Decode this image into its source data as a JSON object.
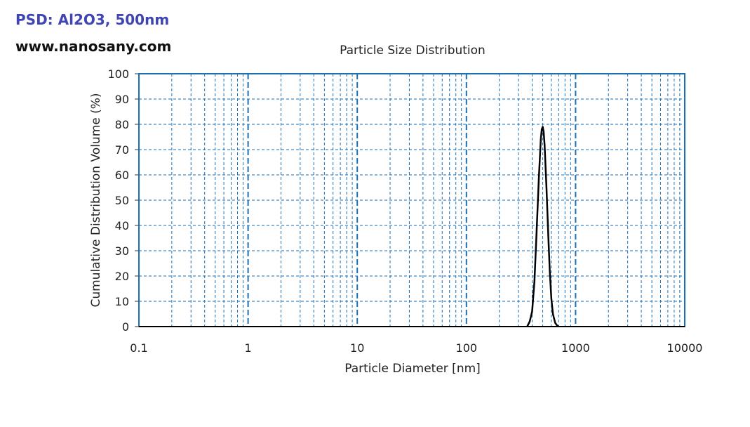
{
  "header": {
    "title": "PSD: Al2O3, 500nm",
    "site": "www.nanosany.com"
  },
  "chart_data": {
    "type": "line",
    "title": "Particle Size Distribution",
    "xlabel": "Particle Diameter [nm]",
    "ylabel": "Cumulative Distribution Volume (%)",
    "x_scale": "log",
    "xlim": [
      0.1,
      10000
    ],
    "ylim": [
      0,
      100
    ],
    "x_ticks": [
      0.1,
      1,
      10,
      100,
      1000,
      10000
    ],
    "x_tick_labels": [
      "0.1",
      "1",
      "10",
      "100",
      "1000",
      "10000"
    ],
    "y_ticks": [
      0,
      10,
      20,
      30,
      40,
      50,
      60,
      70,
      80,
      90,
      100
    ],
    "y_tick_labels": [
      "0",
      "10",
      "20",
      "30",
      "40",
      "50",
      "60",
      "70",
      "80",
      "90",
      "100"
    ],
    "grid": true,
    "colors": {
      "grid": "#1a6fb5",
      "frame": "#1a6fb5",
      "line": "#000000"
    },
    "series": [
      {
        "x": [
          360,
          380,
          400,
          420,
          440,
          460,
          480,
          490,
          500,
          510,
          520,
          540,
          560,
          580,
          600,
          620,
          650,
          680,
          700
        ],
        "y": [
          0,
          2,
          6,
          18,
          38,
          58,
          74,
          78,
          79,
          77,
          72,
          56,
          38,
          22,
          11,
          5,
          1.5,
          0.3,
          0
        ]
      }
    ]
  }
}
